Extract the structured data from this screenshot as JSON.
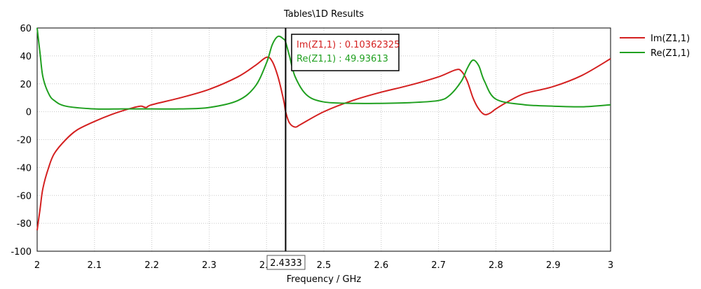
{
  "chart_data": {
    "type": "line",
    "title": "Tables\\1D Results",
    "xlabel": "Frequency / GHz",
    "ylabel": "",
    "xlim": [
      2,
      3
    ],
    "ylim": [
      -100,
      60
    ],
    "xticks": [
      "2",
      "2.1",
      "2.2",
      "2.3",
      "2.4",
      "2.5",
      "2.6",
      "2.7",
      "2.8",
      "2.9",
      "3"
    ],
    "yticks": [
      "60",
      "40",
      "20",
      "0",
      "-20",
      "-40",
      "-60",
      "-80",
      "-100"
    ],
    "grid": true,
    "legend_position": "right",
    "marker": {
      "x": 2.4333,
      "label": "2.4333",
      "readouts": [
        {
          "text": "Im(Z1,1) : 0.10362325",
          "color": "#d42020"
        },
        {
          "text": "Re(Z1,1) : 49.93613",
          "color": "#20a020"
        }
      ]
    },
    "series": [
      {
        "name": "Im(Z1,1)",
        "color": "#d42020",
        "x": [
          2.0,
          2.005,
          2.01,
          2.02,
          2.03,
          2.05,
          2.07,
          2.1,
          2.13,
          2.16,
          2.18,
          2.19,
          2.2,
          2.25,
          2.3,
          2.35,
          2.38,
          2.4,
          2.41,
          2.42,
          2.43,
          2.4333,
          2.44,
          2.45,
          2.46,
          2.5,
          2.55,
          2.6,
          2.65,
          2.7,
          2.73,
          2.74,
          2.75,
          2.76,
          2.77,
          2.78,
          2.79,
          2.8,
          2.82,
          2.85,
          2.9,
          2.95,
          3.0
        ],
        "y": [
          -85,
          -70,
          -55,
          -40,
          -30,
          -20,
          -13,
          -7,
          -2,
          2,
          4,
          3,
          5,
          10,
          16,
          25,
          33,
          39,
          36,
          25,
          8,
          0.1,
          -8,
          -11,
          -9,
          0,
          8,
          14,
          19,
          25,
          30,
          29,
          22,
          10,
          2,
          -2,
          -1,
          2,
          7,
          13,
          18,
          26,
          38
        ]
      },
      {
        "name": "Re(Z1,1)",
        "color": "#20a020",
        "x": [
          2.0,
          2.005,
          2.01,
          2.02,
          2.03,
          2.05,
          2.1,
          2.15,
          2.2,
          2.25,
          2.3,
          2.35,
          2.38,
          2.4,
          2.41,
          2.42,
          2.43,
          2.4333,
          2.44,
          2.45,
          2.47,
          2.5,
          2.55,
          2.6,
          2.65,
          2.7,
          2.72,
          2.74,
          2.75,
          2.76,
          2.77,
          2.78,
          2.8,
          2.85,
          2.9,
          2.95,
          3.0
        ],
        "y": [
          60,
          42,
          25,
          13,
          8,
          4,
          2,
          2,
          2,
          2,
          3,
          8,
          18,
          35,
          48,
          54,
          52,
          49.9,
          40,
          25,
          12,
          7,
          6,
          6,
          6.5,
          8,
          12,
          22,
          31,
          37,
          33,
          22,
          9,
          5,
          4,
          3.5,
          5
        ]
      }
    ]
  }
}
